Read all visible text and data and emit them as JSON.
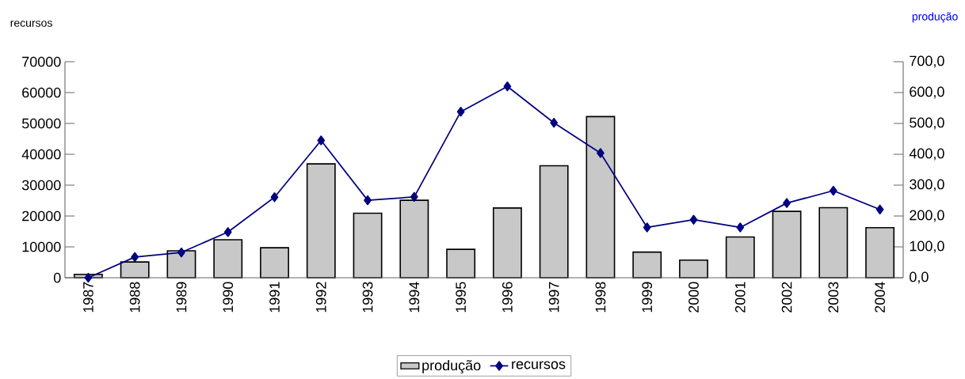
{
  "chart_data": {
    "type": "bar",
    "ylabel": "recursos",
    "y2label": "produção",
    "categories": [
      "1987",
      "1988",
      "1989",
      "1990",
      "1991",
      "1992",
      "1993",
      "1994",
      "1995",
      "1996",
      "1997",
      "1998",
      "1999",
      "2000",
      "2001",
      "2002",
      "2003",
      "2004"
    ],
    "ylim": [
      0,
      70000
    ],
    "yticks": [
      0,
      10000,
      20000,
      30000,
      40000,
      50000,
      60000,
      70000
    ],
    "y2lim": [
      0,
      700
    ],
    "y2ticks": [
      {
        "value": 0,
        "label": "0,0"
      },
      {
        "value": 100,
        "label": "100,0"
      },
      {
        "value": 200,
        "label": "200,0"
      },
      {
        "value": 300,
        "label": "300,0"
      },
      {
        "value": 400,
        "label": "400,0"
      },
      {
        "value": 500,
        "label": "500,0"
      },
      {
        "value": 600,
        "label": "600,0"
      },
      {
        "value": 700,
        "label": "700,0"
      }
    ],
    "legend": "bottom",
    "marker": "diamond",
    "series": [
      {
        "name": "produção",
        "axis": "y2",
        "color": "#c8c8c8",
        "values": [
          11,
          51,
          87,
          123,
          97,
          369,
          209,
          251,
          92,
          226,
          363,
          522,
          83,
          57,
          132,
          215,
          227,
          162
        ]
      },
      {
        "name": "recursos",
        "type": "line",
        "color": "#000080",
        "values": [
          0,
          6700,
          8200,
          14800,
          26100,
          44500,
          25100,
          26200,
          53800,
          62000,
          50200,
          40400,
          16300,
          18800,
          16300,
          24200,
          28200,
          22100
        ]
      }
    ]
  }
}
